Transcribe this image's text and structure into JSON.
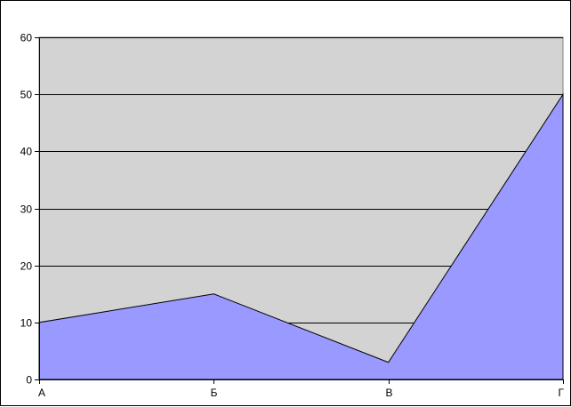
{
  "chart_data": {
    "type": "area",
    "categories": [
      "А",
      "Б",
      "В",
      "Г"
    ],
    "values": [
      10,
      15,
      3,
      50
    ],
    "title": "",
    "xlabel": "",
    "ylabel": "",
    "ylim": [
      0,
      60
    ],
    "yticks": [
      0,
      10,
      20,
      30,
      40,
      50,
      60
    ],
    "grid": true,
    "legend": "none",
    "colors": {
      "plot_background": "#d3d3d3",
      "area_fill": "#9999ff",
      "line": "#000000",
      "grid": "#000000"
    }
  }
}
